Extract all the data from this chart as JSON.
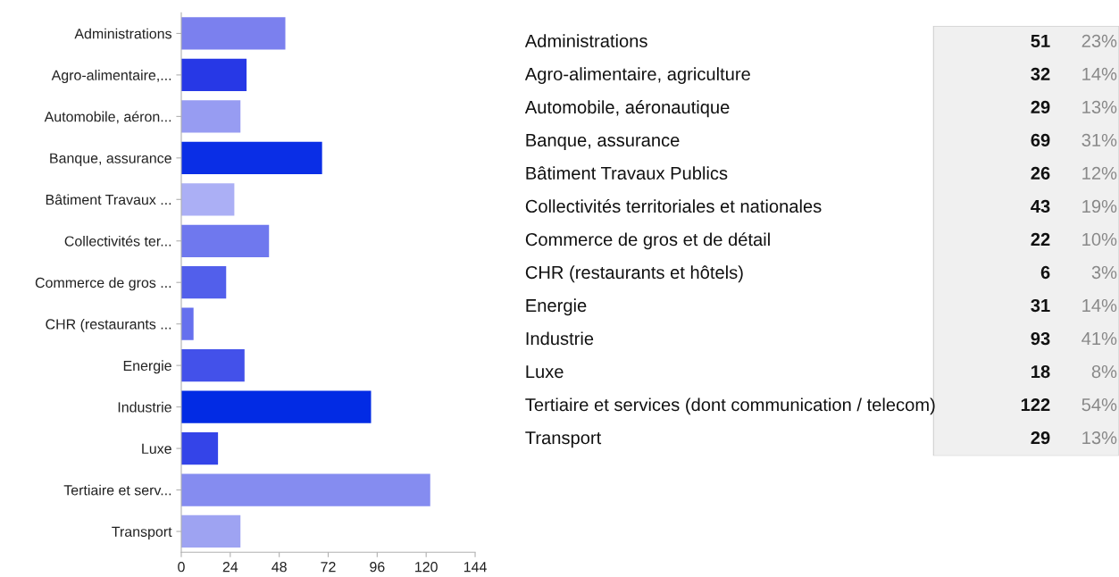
{
  "chart_data": [
    {
      "type": "bar",
      "orientation": "horizontal",
      "categories": [
        "Administrations",
        "Agro-alimentaire,...",
        "Automobile, aéron...",
        "Banque, assurance",
        "Bâtiment Travaux ...",
        "Collectivités ter...",
        "Commerce de gros ...",
        "CHR (restaurants ...",
        "Energie",
        "Industrie",
        "Luxe",
        "Tertiaire et serv...",
        "Transport"
      ],
      "values": [
        51,
        32,
        29,
        69,
        26,
        43,
        22,
        6,
        31,
        93,
        18,
        122,
        29
      ],
      "colors": [
        "#7b80ee",
        "#2738e6",
        "#979cf2",
        "#0a2ee6",
        "#abaff5",
        "#6f78ee",
        "#525feb",
        "#6670ee",
        "#4351ea",
        "#022be4",
        "#3444e8",
        "#858cf0",
        "#9ea3f2"
      ],
      "xlim": [
        0,
        144
      ],
      "xticks": [
        0,
        24,
        48,
        72,
        96,
        120,
        144
      ],
      "grid": false
    },
    {
      "type": "other",
      "categories": [
        "Administrations",
        "Agro-alimentaire, agriculture",
        "Automobile, aéronautique",
        "Banque, assurance",
        "Bâtiment Travaux Publics",
        "Collectivités territoriales et nationales",
        "Commerce de gros et de détail",
        "CHR (restaurants et hôtels)",
        "Energie",
        "Industrie",
        "Luxe",
        "Tertiaire et services (dont communication / telecom)",
        "Transport"
      ],
      "values": [
        51,
        32,
        29,
        69,
        26,
        43,
        22,
        6,
        31,
        93,
        18,
        122,
        29
      ],
      "data_labels": true,
      "annotations": [
        "23%",
        "14%",
        "13%",
        "31%",
        "12%",
        "19%",
        "10%",
        "3%",
        "14%",
        "41%",
        "8%",
        "54%",
        "13%"
      ]
    }
  ]
}
